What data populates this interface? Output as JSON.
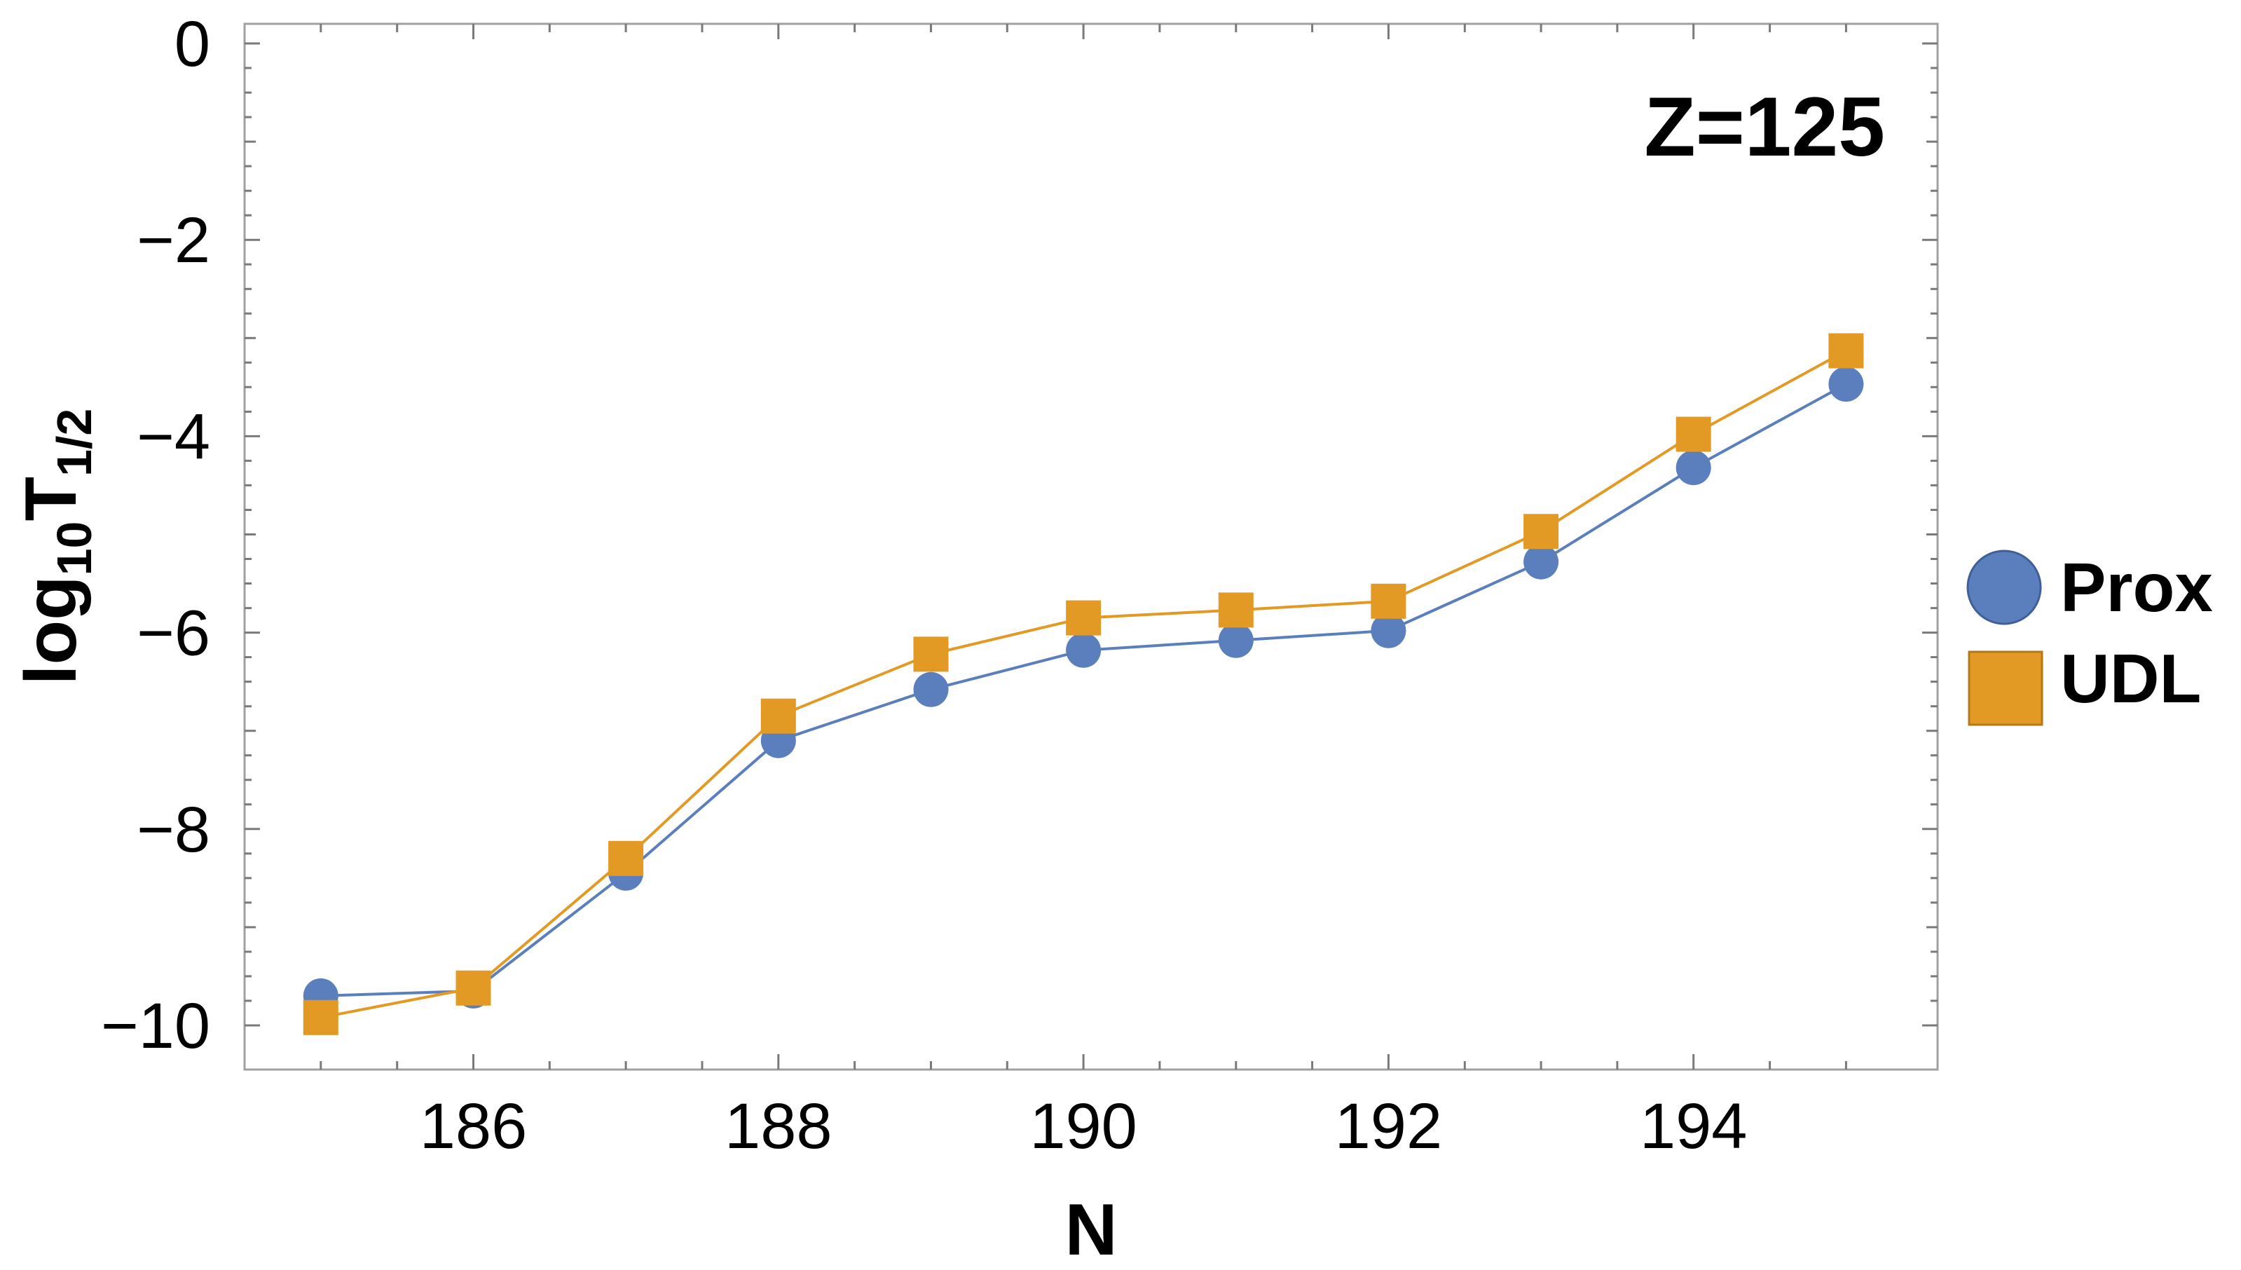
{
  "chart_data": {
    "type": "line",
    "xlabel": "N",
    "ylabel": {
      "base": "log",
      "base_sub": "10",
      "main": "T",
      "main_sub": "1/2"
    },
    "annotation": "Z=125",
    "x": [
      185,
      186,
      187,
      188,
      189,
      190,
      191,
      192,
      193,
      194,
      195
    ],
    "xlim": [
      184.5,
      195.6
    ],
    "ylim": [
      -10.45,
      0.2
    ],
    "xticks": [
      186,
      188,
      190,
      192,
      194
    ],
    "xtick_labels": [
      "186",
      "188",
      "190",
      "192",
      "194"
    ],
    "yticks": [
      0,
      -2,
      -4,
      -6,
      -8,
      -10
    ],
    "ytick_labels": [
      "0",
      "−2",
      "−4",
      "−6",
      "−8",
      "−10"
    ],
    "grid": false,
    "legend_position": "right",
    "series": [
      {
        "name": "Prox",
        "marker": "circle",
        "color": "#5b7fbd",
        "values": [
          -9.7,
          -9.65,
          -8.45,
          -7.1,
          -6.58,
          -6.18,
          -6.08,
          -5.98,
          -5.28,
          -4.32,
          -3.47
        ]
      },
      {
        "name": "UDL",
        "marker": "square",
        "color": "#e29a24",
        "values": [
          -9.92,
          -9.62,
          -8.3,
          -6.85,
          -6.22,
          -5.85,
          -5.77,
          -5.68,
          -4.97,
          -3.98,
          -3.13
        ]
      }
    ]
  }
}
